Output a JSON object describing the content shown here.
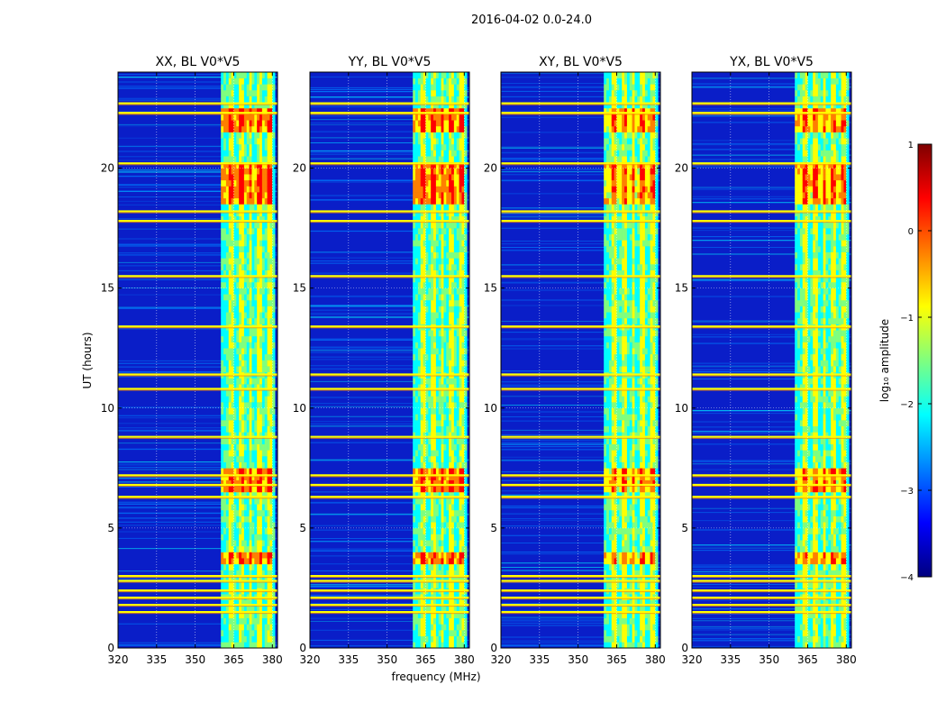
{
  "suptitle": "2016-04-02 0.0-24.0",
  "colors": {
    "background": "#00008f",
    "jet_stops": [
      "#00007f",
      "#0000ff",
      "#007fff",
      "#00ffff",
      "#7fff7f",
      "#ffff00",
      "#ff7f00",
      "#ff0000",
      "#7f0000"
    ]
  },
  "chart_data": {
    "type": "heatmap",
    "xlabel": "frequency (MHz)",
    "ylabel": "UT (hours)",
    "xlim": [
      320,
      382
    ],
    "ylim": [
      0,
      24
    ],
    "xticks": [
      320,
      335,
      350,
      365,
      380
    ],
    "yticks": [
      0,
      5,
      10,
      15,
      20
    ],
    "grid": true,
    "colormap": "jet",
    "colorbar": {
      "label": "log₁₀ amplitude",
      "range": [
        -4,
        1
      ],
      "ticks": [
        1,
        0,
        -1,
        -2,
        -3,
        -4
      ],
      "tick_labels": [
        "1",
        "0",
        "−1",
        "−2",
        "−3",
        "−4"
      ]
    },
    "rfi_band_mhz": [
      360,
      381
    ],
    "rfi_channel_bands_mhz": [
      [
        363,
        365
      ],
      [
        367,
        369
      ],
      [
        371,
        372
      ],
      [
        374,
        376
      ],
      [
        378,
        380
      ]
    ],
    "bright_times_hours": [
      1.5,
      1.8,
      2.1,
      2.4,
      2.8,
      3.0,
      6.3,
      6.8,
      7.2,
      8.8,
      10.8,
      11.4,
      13.4,
      15.5,
      17.8,
      18.2,
      20.2,
      22.3,
      22.7
    ],
    "burst_times_hours": [
      [
        18.3,
        20.0
      ],
      [
        21.5,
        22.3
      ],
      [
        6.5,
        7.4
      ],
      [
        3.3,
        3.9
      ]
    ],
    "panels": [
      {
        "name": "xx",
        "title": "XX, BL V0*V5",
        "burst_strength": 1.0
      },
      {
        "name": "yy",
        "title": "YY, BL V0*V5",
        "burst_strength": 0.95
      },
      {
        "name": "xy",
        "title": "XY, BL V0*V5",
        "burst_strength": 0.75
      },
      {
        "name": "yx",
        "title": "YX, BL V0*V5",
        "burst_strength": 0.8
      }
    ]
  }
}
